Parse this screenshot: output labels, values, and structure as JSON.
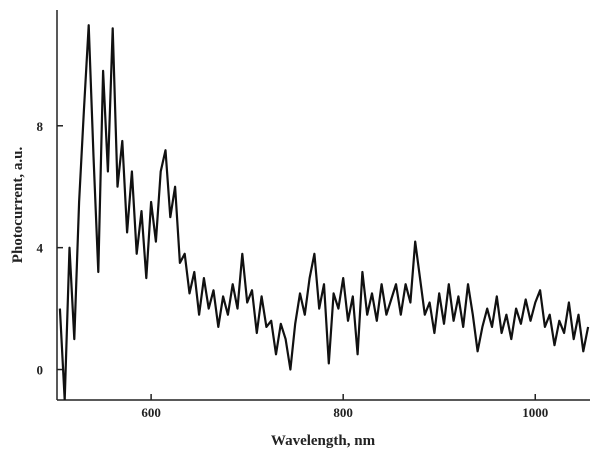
{
  "chart_data": {
    "type": "line",
    "x_label": "Wavelength, nm",
    "y_label": "Photocurrent, a.u.",
    "color": "#111111",
    "xlim": [
      502,
      1057
    ],
    "xticks": [
      600,
      800,
      1000
    ],
    "ylim": [
      -1,
      11.8
    ],
    "yticks": [
      0,
      4,
      8
    ],
    "x": [
      505,
      510,
      515,
      520,
      525,
      530,
      535,
      540,
      545,
      550,
      555,
      560,
      565,
      570,
      575,
      580,
      585,
      590,
      595,
      600,
      605,
      610,
      615,
      620,
      625,
      630,
      635,
      640,
      645,
      650,
      655,
      660,
      665,
      670,
      675,
      680,
      685,
      690,
      695,
      700,
      705,
      710,
      715,
      720,
      725,
      730,
      735,
      740,
      745,
      750,
      755,
      760,
      765,
      770,
      775,
      780,
      785,
      790,
      795,
      800,
      805,
      810,
      815,
      820,
      825,
      830,
      835,
      840,
      845,
      850,
      855,
      860,
      865,
      870,
      875,
      880,
      885,
      890,
      895,
      900,
      905,
      910,
      915,
      920,
      925,
      930,
      935,
      940,
      945,
      950,
      955,
      960,
      965,
      970,
      975,
      980,
      985,
      990,
      995,
      1000,
      1005,
      1010,
      1015,
      1020,
      1025,
      1030,
      1035,
      1040,
      1045,
      1050,
      1055
    ],
    "values": [
      2.0,
      -1.0,
      4.0,
      1.0,
      5.5,
      8.5,
      11.3,
      7.0,
      3.2,
      9.8,
      6.5,
      11.2,
      6.0,
      7.5,
      4.5,
      6.5,
      3.8,
      5.2,
      3.0,
      5.5,
      4.2,
      6.5,
      7.2,
      5.0,
      6.0,
      3.5,
      3.8,
      2.5,
      3.2,
      1.8,
      3.0,
      2.0,
      2.6,
      1.4,
      2.4,
      1.8,
      2.8,
      2.0,
      3.8,
      2.2,
      2.6,
      1.2,
      2.4,
      1.4,
      1.6,
      0.5,
      1.5,
      1.0,
      0.0,
      1.5,
      2.5,
      1.8,
      3.0,
      3.8,
      2.0,
      2.8,
      0.2,
      2.5,
      2.0,
      3.0,
      1.6,
      2.4,
      0.5,
      3.2,
      1.8,
      2.5,
      1.6,
      2.8,
      1.8,
      2.3,
      2.8,
      1.8,
      2.8,
      2.2,
      4.2,
      3.0,
      1.8,
      2.2,
      1.2,
      2.5,
      1.5,
      2.8,
      1.6,
      2.4,
      1.4,
      2.8,
      1.8,
      0.6,
      1.4,
      2.0,
      1.4,
      2.4,
      1.2,
      1.8,
      1.0,
      2.0,
      1.5,
      2.3,
      1.6,
      2.2,
      2.6,
      1.4,
      1.8,
      0.8,
      1.6,
      1.2,
      2.2,
      1.0,
      1.8,
      0.6,
      1.4
    ]
  }
}
